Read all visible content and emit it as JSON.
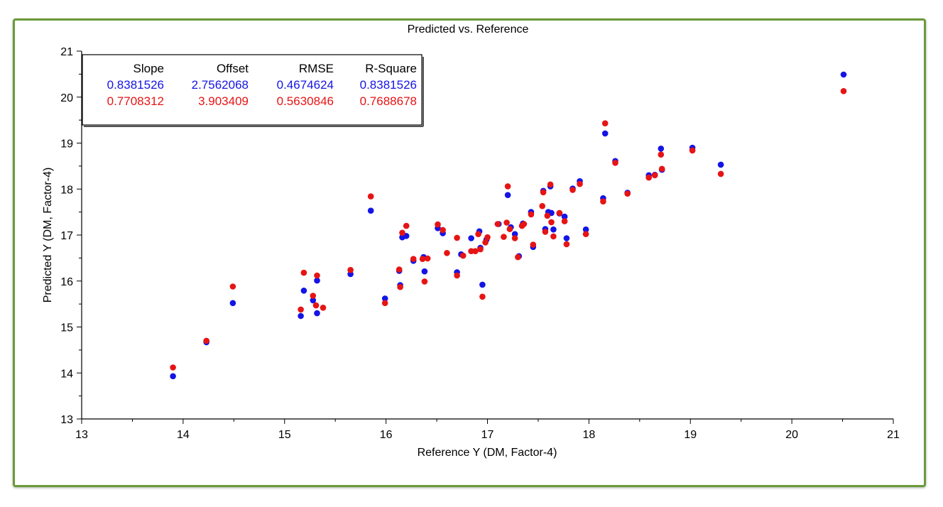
{
  "chart_data": {
    "type": "scatter",
    "title": "Predicted vs. Reference",
    "xlabel": "Reference Y (DM, Factor-4)",
    "ylabel": "Predicted Y (DM, Factor-4)",
    "xlim": [
      13,
      21
    ],
    "ylim": [
      13,
      21
    ],
    "x_ticks": [
      "13",
      "14",
      "15",
      "16",
      "17",
      "18",
      "19",
      "20",
      "21"
    ],
    "y_ticks": [
      "13",
      "14",
      "15",
      "16",
      "17",
      "18",
      "19",
      "20",
      "21"
    ],
    "grid": false,
    "stats_table": {
      "headers": [
        "Slope",
        "Offset",
        "RMSE",
        "R-Square"
      ],
      "rows": [
        {
          "color": "#1414e6",
          "values": [
            "0.8381526",
            "2.7562068",
            "0.4674624",
            "0.8381526"
          ]
        },
        {
          "color": "#e61414",
          "values": [
            "0.7708312",
            "3.903409",
            "0.5630846",
            "0.7688678"
          ]
        }
      ]
    },
    "series": [
      {
        "color": "#1414e6",
        "points": [
          [
            13.9,
            13.93
          ],
          [
            14.23,
            14.67
          ],
          [
            14.49,
            15.52
          ],
          [
            15.16,
            15.24
          ],
          [
            15.19,
            15.79
          ],
          [
            15.28,
            15.58
          ],
          [
            15.32,
            15.3
          ],
          [
            15.32,
            16.01
          ],
          [
            15.65,
            16.15
          ],
          [
            15.85,
            17.53
          ],
          [
            15.99,
            15.62
          ],
          [
            16.13,
            16.22
          ],
          [
            16.14,
            15.91
          ],
          [
            16.16,
            16.95
          ],
          [
            16.2,
            16.98
          ],
          [
            16.27,
            16.44
          ],
          [
            16.37,
            16.52
          ],
          [
            16.38,
            16.21
          ],
          [
            16.51,
            17.15
          ],
          [
            16.56,
            17.04
          ],
          [
            16.7,
            16.19
          ],
          [
            16.74,
            16.58
          ],
          [
            16.84,
            16.93
          ],
          [
            16.92,
            17.08
          ],
          [
            16.93,
            16.72
          ],
          [
            16.95,
            15.92
          ],
          [
            16.99,
            16.9
          ],
          [
            17.11,
            17.24
          ],
          [
            17.2,
            17.87
          ],
          [
            17.23,
            17.17
          ],
          [
            17.27,
            17.02
          ],
          [
            17.31,
            16.54
          ],
          [
            17.35,
            17.25
          ],
          [
            17.43,
            17.5
          ],
          [
            17.45,
            16.74
          ],
          [
            17.55,
            17.96
          ],
          [
            17.57,
            17.13
          ],
          [
            17.6,
            17.5
          ],
          [
            17.62,
            18.06
          ],
          [
            17.63,
            17.48
          ],
          [
            17.65,
            17.12
          ],
          [
            17.71,
            17.47
          ],
          [
            17.76,
            17.4
          ],
          [
            17.78,
            16.93
          ],
          [
            17.84,
            18.01
          ],
          [
            17.91,
            18.17
          ],
          [
            17.97,
            17.12
          ],
          [
            18.14,
            17.8
          ],
          [
            18.16,
            19.21
          ],
          [
            18.26,
            18.61
          ],
          [
            18.38,
            17.92
          ],
          [
            18.59,
            18.3
          ],
          [
            18.65,
            18.31
          ],
          [
            18.71,
            18.88
          ],
          [
            18.72,
            18.42
          ],
          [
            19.02,
            18.9
          ],
          [
            19.3,
            18.53
          ],
          [
            20.51,
            20.49
          ]
        ]
      },
      {
        "color": "#e61414",
        "points": [
          [
            13.9,
            14.12
          ],
          [
            14.23,
            14.7
          ],
          [
            14.49,
            15.88
          ],
          [
            15.16,
            15.38
          ],
          [
            15.19,
            16.18
          ],
          [
            15.28,
            15.68
          ],
          [
            15.31,
            15.47
          ],
          [
            15.32,
            16.12
          ],
          [
            15.38,
            15.42
          ],
          [
            15.65,
            16.24
          ],
          [
            15.85,
            17.84
          ],
          [
            15.99,
            15.52
          ],
          [
            16.13,
            16.25
          ],
          [
            16.14,
            15.87
          ],
          [
            16.16,
            17.05
          ],
          [
            16.2,
            17.2
          ],
          [
            16.27,
            16.48
          ],
          [
            16.36,
            16.48
          ],
          [
            16.38,
            15.99
          ],
          [
            16.41,
            16.49
          ],
          [
            16.51,
            17.23
          ],
          [
            16.56,
            17.11
          ],
          [
            16.6,
            16.61
          ],
          [
            16.7,
            16.12
          ],
          [
            16.7,
            16.94
          ],
          [
            16.76,
            16.55
          ],
          [
            16.84,
            16.65
          ],
          [
            16.88,
            16.65
          ],
          [
            16.91,
            17.02
          ],
          [
            16.93,
            16.69
          ],
          [
            16.95,
            15.66
          ],
          [
            16.98,
            16.84
          ],
          [
            17.0,
            16.95
          ],
          [
            17.1,
            17.24
          ],
          [
            17.16,
            16.96
          ],
          [
            17.19,
            17.27
          ],
          [
            17.2,
            18.06
          ],
          [
            17.22,
            17.13
          ],
          [
            17.27,
            16.93
          ],
          [
            17.3,
            16.52
          ],
          [
            17.34,
            17.2
          ],
          [
            17.36,
            17.24
          ],
          [
            17.43,
            17.45
          ],
          [
            17.45,
            16.79
          ],
          [
            17.54,
            17.63
          ],
          [
            17.55,
            17.93
          ],
          [
            17.57,
            17.07
          ],
          [
            17.59,
            17.42
          ],
          [
            17.62,
            18.1
          ],
          [
            17.63,
            17.28
          ],
          [
            17.65,
            16.97
          ],
          [
            17.71,
            17.48
          ],
          [
            17.76,
            17.3
          ],
          [
            17.78,
            16.8
          ],
          [
            17.84,
            17.98
          ],
          [
            17.91,
            18.11
          ],
          [
            17.97,
            17.02
          ],
          [
            18.14,
            17.73
          ],
          [
            18.16,
            19.43
          ],
          [
            18.26,
            18.57
          ],
          [
            18.38,
            17.9
          ],
          [
            18.59,
            18.25
          ],
          [
            18.65,
            18.3
          ],
          [
            18.71,
            18.75
          ],
          [
            18.72,
            18.44
          ],
          [
            19.02,
            18.84
          ],
          [
            19.3,
            18.33
          ],
          [
            20.51,
            20.13
          ]
        ]
      }
    ]
  }
}
